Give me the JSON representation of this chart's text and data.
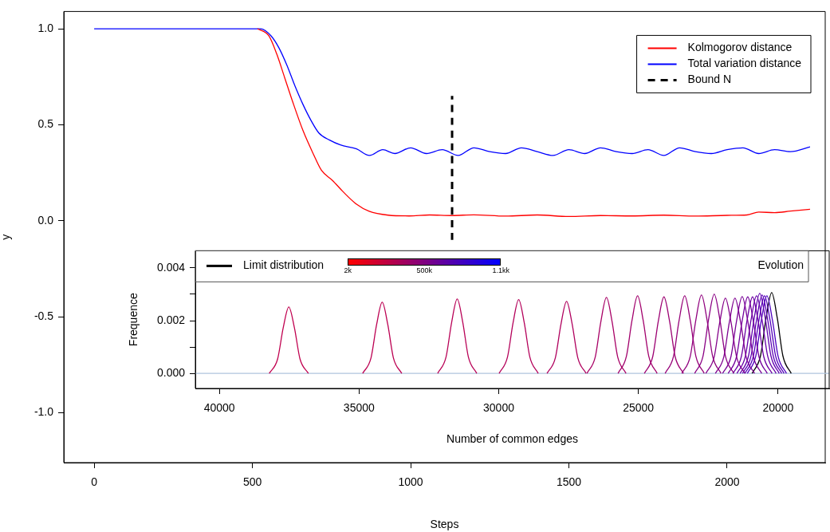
{
  "chart_data": [
    {
      "type": "line",
      "xlabel": "Steps",
      "ylabel": "y",
      "xlim": [
        -96,
        2310
      ],
      "ylim": [
        -1.26,
        1.09
      ],
      "xticks": [
        0,
        500,
        1000,
        1500,
        2000
      ],
      "yticks": [
        {
          "value": -1,
          "label": "-1.0"
        },
        {
          "value": -0.5,
          "label": "-0.5"
        },
        {
          "value": 0,
          "label": "0.0"
        },
        {
          "value": 0.5,
          "label": "0.5"
        },
        {
          "value": 1,
          "label": "1.0"
        }
      ],
      "grid": false,
      "legend": "top right",
      "marker": "none",
      "series": [
        {
          "name": "Kolmogorov distance",
          "color": "#ff0000",
          "x": [
            516,
            552,
            577,
            602,
            627,
            660,
            693,
            718,
            753,
            786,
            829,
            869,
            929,
            995,
            1060,
            1130,
            1200,
            1300,
            1400,
            1500,
            1600,
            1700,
            1800,
            1900,
            2000,
            2063,
            2100,
            2150,
            2200,
            2262
          ],
          "values": [
            1,
            0.963,
            0.868,
            0.745,
            0.621,
            0.469,
            0.346,
            0.263,
            0.21,
            0.152,
            0.086,
            0.049,
            0.029,
            0.025,
            0.03,
            0.027,
            0.031,
            0.024,
            0.03,
            0.022,
            0.027,
            0.025,
            0.029,
            0.024,
            0.028,
            0.03,
            0.045,
            0.042,
            0.05,
            0.06
          ]
        },
        {
          "name": "Total variation distance",
          "color": "#0000ff",
          "x": [
            0,
            526,
            559,
            584,
            609,
            635,
            660,
            685,
            710,
            744,
            778,
            829,
            870,
            912,
            950,
            1000,
            1050,
            1100,
            1150,
            1200,
            1250,
            1300,
            1350,
            1400,
            1450,
            1500,
            1550,
            1600,
            1650,
            1700,
            1750,
            1800,
            1850,
            1900,
            1950,
            2000,
            2050,
            2100,
            2150,
            2200,
            2262
          ],
          "values": [
            1,
            1,
            0.963,
            0.9,
            0.81,
            0.7,
            0.605,
            0.523,
            0.457,
            0.42,
            0.395,
            0.374,
            0.34,
            0.37,
            0.35,
            0.38,
            0.35,
            0.37,
            0.34,
            0.38,
            0.36,
            0.35,
            0.38,
            0.36,
            0.34,
            0.37,
            0.35,
            0.38,
            0.36,
            0.35,
            0.37,
            0.34,
            0.38,
            0.36,
            0.35,
            0.37,
            0.38,
            0.35,
            0.37,
            0.36,
            0.385
          ]
        },
        {
          "name": "Bound N",
          "color": "#000000",
          "line_style": "dashed",
          "x": [
            1131,
            1131
          ],
          "values": [
            -0.1,
            0.65
          ]
        }
      ]
    },
    {
      "type": "line",
      "xlabel": "Number of common edges",
      "ylabel": "Frequence",
      "xlim": [
        40860,
        18170
      ],
      "ylim": [
        -0.00057,
        0.00465
      ],
      "xticks": [
        40000,
        35000,
        30000,
        25000,
        20000
      ],
      "yticks": [
        {
          "value": 0,
          "label": "0.000"
        },
        {
          "value": 0.001,
          "label": null
        },
        {
          "value": 0.002,
          "label": "0.002"
        },
        {
          "value": 0.003,
          "label": null
        },
        {
          "value": 0.004,
          "label": "0.004"
        }
      ],
      "grid": false,
      "legend": "top",
      "marker": "none",
      "legend_title": "Evolution",
      "annotations": [
        "2k",
        "500k",
        "1.1kk"
      ],
      "ref_lines": [
        {
          "axis": "y",
          "value": 0,
          "color": "#b0c4de"
        }
      ],
      "series": [
        {
          "color": "#c0004f",
          "x": [
            36814,
            37114,
            37314,
            37514,
            37714,
            37914,
            38214
          ],
          "values": [
            0,
            0.00055,
            0.00173,
            0.00252,
            0.00173,
            0.00055,
            0
          ]
        },
        {
          "color": "#bc0052",
          "x": [
            33471,
            33771,
            33971,
            34171,
            34371,
            34571,
            34871
          ],
          "values": [
            0,
            0.00059,
            0.00185,
            0.0027,
            0.00185,
            0.00059,
            0
          ]
        },
        {
          "color": "#b80056",
          "x": [
            30786,
            31086,
            31286,
            31486,
            31686,
            31886,
            32186
          ],
          "values": [
            0,
            0.00062,
            0.00193,
            0.00282,
            0.00193,
            0.00062,
            0
          ]
        },
        {
          "color": "#b4005a",
          "x": [
            28586,
            28886,
            29086,
            29286,
            29486,
            29686,
            29986
          ],
          "values": [
            0,
            0.00062,
            0.00192,
            0.0028,
            0.00192,
            0.00062,
            0
          ]
        },
        {
          "color": "#b0005e",
          "x": [
            26871,
            27171,
            27371,
            27571,
            27771,
            27971,
            28271
          ],
          "values": [
            0,
            0.0006,
            0.00187,
            0.00273,
            0.00187,
            0.0006,
            0
          ]
        },
        {
          "color": "#a80066",
          "x": [
            25443,
            25743,
            25943,
            26143,
            26343,
            26543,
            26843
          ],
          "values": [
            0,
            0.00063,
            0.00197,
            0.00288,
            0.00197,
            0.00063,
            0
          ]
        },
        {
          "color": "#a2006c",
          "x": [
            24329,
            24629,
            24829,
            25029,
            25229,
            25429,
            25729
          ],
          "values": [
            0,
            0.00065,
            0.00201,
            0.00294,
            0.00201,
            0.00065,
            0
          ]
        },
        {
          "color": "#9c0072",
          "x": [
            23386,
            23686,
            23886,
            24086,
            24286,
            24486,
            24786
          ],
          "values": [
            0,
            0.00064,
            0.00199,
            0.0029,
            0.00199,
            0.00064,
            0
          ]
        },
        {
          "color": "#960078",
          "x": [
            22643,
            22943,
            23143,
            23343,
            23543,
            23743,
            24043
          ],
          "values": [
            0,
            0.00065,
            0.00201,
            0.00294,
            0.00201,
            0.00065,
            0
          ]
        },
        {
          "color": "#90007e",
          "x": [
            22043,
            22343,
            22543,
            22743,
            22943,
            23143,
            23443
          ],
          "values": [
            0,
            0.00065,
            0.00203,
            0.00297,
            0.00203,
            0.00065,
            0
          ]
        },
        {
          "color": "#8a0084",
          "x": [
            21586,
            21886,
            22086,
            22286,
            22486,
            22686,
            22986
          ],
          "values": [
            0,
            0.00066,
            0.00206,
            0.003,
            0.00206,
            0.00066,
            0
          ]
        },
        {
          "color": "#84008a",
          "x": [
            21186,
            21486,
            21686,
            21886,
            22086,
            22286,
            22586
          ],
          "values": [
            0,
            0.00063,
            0.00195,
            0.00285,
            0.00195,
            0.00063,
            0
          ]
        },
        {
          "color": "#7e0090",
          "x": [
            20843,
            21143,
            21343,
            21543,
            21743,
            21943,
            22243
          ],
          "values": [
            0,
            0.00063,
            0.00195,
            0.00285,
            0.00195,
            0.00063,
            0
          ]
        },
        {
          "color": "#780096",
          "x": [
            20586,
            20886,
            21086,
            21286,
            21486,
            21686,
            21986
          ],
          "values": [
            0,
            0.00064,
            0.00199,
            0.00291,
            0.00199,
            0.00064,
            0
          ]
        },
        {
          "color": "#72009c",
          "x": [
            20386,
            20686,
            20886,
            21086,
            21286,
            21486,
            21786
          ],
          "values": [
            0,
            0.00064,
            0.00199,
            0.0029,
            0.00199,
            0.00064,
            0
          ]
        },
        {
          "color": "#6c00a2",
          "x": [
            20214,
            20514,
            20714,
            20914,
            21114,
            21314,
            21614
          ],
          "values": [
            0,
            0.00064,
            0.00199,
            0.0029,
            0.00199,
            0.00064,
            0
          ]
        },
        {
          "color": "#6600a8",
          "x": [
            20071,
            20371,
            20571,
            20771,
            20971,
            21171,
            21471
          ],
          "values": [
            0,
            0.00065,
            0.00201,
            0.00294,
            0.00201,
            0.00065,
            0
          ]
        },
        {
          "color": "#6000ae",
          "x": [
            19957,
            20257,
            20457,
            20657,
            20857,
            21057,
            21357
          ],
          "values": [
            0,
            0.00067,
            0.00208,
            0.00303,
            0.00208,
            0.00067,
            0
          ]
        },
        {
          "color": "#5a00b4",
          "x": [
            19871,
            20171,
            20371,
            20571,
            20771,
            20971,
            21271
          ],
          "values": [
            0,
            0.00065,
            0.00203,
            0.00297,
            0.00203,
            0.00065,
            0
          ]
        },
        {
          "color": "#5400ba",
          "x": [
            19786,
            20086,
            20286,
            20486,
            20686,
            20886,
            21186
          ],
          "values": [
            0,
            0.00065,
            0.00201,
            0.00294,
            0.00201,
            0.00065,
            0
          ]
        },
        {
          "color": "#4e00c0",
          "x": [
            19700,
            20000,
            20200,
            20400,
            20600,
            20800,
            21100
          ],
          "values": [
            0,
            0.00065,
            0.00201,
            0.00294,
            0.00201,
            0.00065,
            0
          ]
        },
        {
          "name": "Limit distribution",
          "color": "#000000",
          "x": [
            19529,
            19829,
            20029,
            20229,
            20429,
            20629,
            20929
          ],
          "values": [
            0,
            0.00067,
            0.0021,
            0.00306,
            0.0021,
            0.00067,
            0
          ]
        }
      ]
    }
  ]
}
